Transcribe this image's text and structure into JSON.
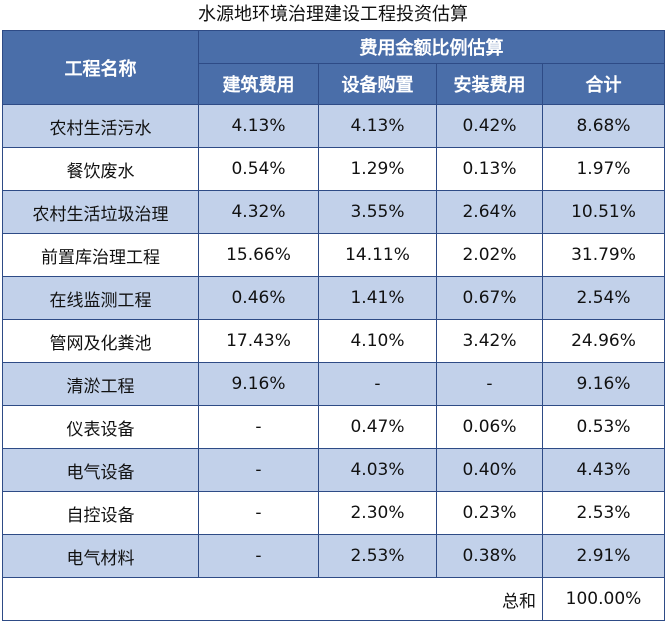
{
  "title": "水源地环境治理建设工程投资估算",
  "chart_data": {
    "type": "table",
    "title": "水源地环境治理建设工程投资估算",
    "header": {
      "name_col": "工程名称",
      "group": "费用金额比例估算",
      "columns": [
        "建筑费用",
        "设备购置",
        "安装费用",
        "合计"
      ]
    },
    "rows": [
      {
        "name": "农村生活污水",
        "values": [
          "4.13%",
          "4.13%",
          "0.42%",
          "8.68%"
        ]
      },
      {
        "name": "餐饮废水",
        "values": [
          "0.54%",
          "1.29%",
          "0.13%",
          "1.97%"
        ]
      },
      {
        "name": "农村生活垃圾治理",
        "values": [
          "4.32%",
          "3.55%",
          "2.64%",
          "10.51%"
        ]
      },
      {
        "name": "前置库治理工程",
        "values": [
          "15.66%",
          "14.11%",
          "2.02%",
          "31.79%"
        ]
      },
      {
        "name": "在线监测工程",
        "values": [
          "0.46%",
          "1.41%",
          "0.67%",
          "2.54%"
        ]
      },
      {
        "name": "管网及化粪池",
        "values": [
          "17.43%",
          "4.10%",
          "3.42%",
          "24.96%"
        ]
      },
      {
        "name": "清淤工程",
        "values": [
          "9.16%",
          "-",
          "-",
          "9.16%"
        ]
      },
      {
        "name": "仪表设备",
        "values": [
          "-",
          "0.47%",
          "0.06%",
          "0.53%"
        ]
      },
      {
        "name": "电气设备",
        "values": [
          "-",
          "4.03%",
          "0.40%",
          "4.43%"
        ]
      },
      {
        "name": "自控设备",
        "values": [
          "-",
          "2.30%",
          "0.23%",
          "2.53%"
        ]
      },
      {
        "name": "电气材料",
        "values": [
          "-",
          "2.53%",
          "0.38%",
          "2.91%"
        ]
      }
    ],
    "total": {
      "label": "总和",
      "value": "100.00%"
    }
  },
  "colors": {
    "header_bg": "#4a6ea9",
    "stripe_bg": "#c2d1ea",
    "border": "#2e4b86"
  }
}
